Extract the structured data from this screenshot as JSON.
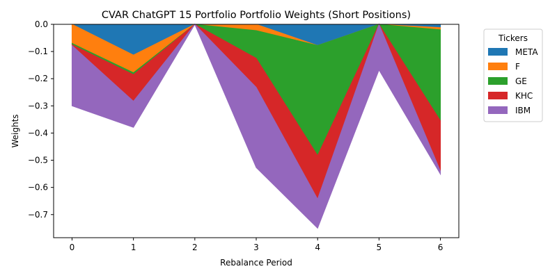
{
  "chart_data": {
    "type": "area",
    "stacked": true,
    "title": "CVAR ChatGPT 15 Portfolio Portfolio Weights (Short Positions)",
    "xlabel": "Rebalance Period",
    "ylabel": "Weights",
    "x": [
      0,
      1,
      2,
      3,
      4,
      5,
      6
    ],
    "xlim": [
      -0.3,
      6.3
    ],
    "ylim": [
      -0.785,
      0.0
    ],
    "xticks": [
      "0",
      "1",
      "2",
      "3",
      "4",
      "5",
      "6"
    ],
    "yticks": [
      0.0,
      -0.1,
      -0.2,
      -0.3,
      -0.4,
      -0.5,
      -0.6,
      -0.7
    ],
    "ytick_labels": [
      "0.0",
      "−0.1",
      "−0.2",
      "−0.3",
      "−0.4",
      "−0.5",
      "−0.6",
      "−0.7"
    ],
    "grid": false,
    "legend": {
      "title": "Tickers",
      "placement": "outside-right"
    },
    "series": [
      {
        "name": "META",
        "color": "#1f77b4",
        "values": [
          0.0,
          -0.113,
          0.0,
          0.0,
          -0.078,
          0.0,
          -0.012
        ]
      },
      {
        "name": "F",
        "color": "#ff7f0e",
        "values": [
          -0.07,
          -0.065,
          0.0,
          -0.023,
          0.0,
          0.0,
          -0.008
        ]
      },
      {
        "name": "GE",
        "color": "#2ca02c",
        "values": [
          -0.005,
          -0.007,
          0.0,
          -0.102,
          -0.405,
          0.0,
          -0.335
        ]
      },
      {
        "name": "KHC",
        "color": "#d62728",
        "values": [
          -0.003,
          -0.098,
          0.0,
          -0.107,
          -0.16,
          0.0,
          -0.185
        ]
      },
      {
        "name": "IBM",
        "color": "#9467bd",
        "values": [
          -0.222,
          -0.096,
          0.0,
          -0.295,
          -0.107,
          -0.168,
          -0.011
        ]
      }
    ]
  }
}
